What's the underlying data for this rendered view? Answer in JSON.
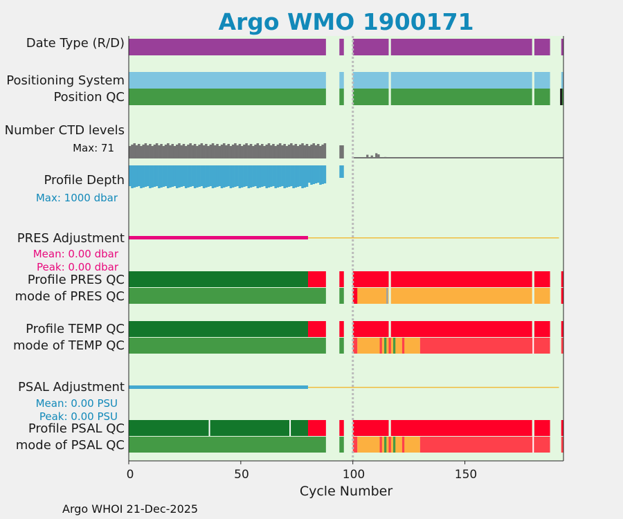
{
  "title": "Argo WMO 1900171",
  "footer": "Argo WHOI 21-Dec-2025",
  "chart_data": {
    "type": "bar",
    "title": "Argo WMO 1900171",
    "xlabel": "Cycle Number",
    "xlim": [
      0,
      194
    ],
    "xticks": [
      0,
      50,
      100,
      150
    ],
    "reference_cycle": 100,
    "rows": {
      "date_type": "Date Type (R/D)",
      "positioning": "Positioning System",
      "position_qc": "Position QC",
      "ctd_levels": "Number CTD levels",
      "ctd_max": "Max: 71",
      "profile_depth": "Profile Depth",
      "depth_max": "Max: 1000 dbar",
      "pres_adj": "PRES Adjustment",
      "pres_mean": "Mean: 0.00 dbar",
      "pres_peak": "Peak: 0.00 dbar",
      "pres_qc": "Profile PRES QC",
      "pres_mode": "mode of PRES QC",
      "temp_qc": "Profile TEMP QC",
      "temp_mode": "mode of TEMP QC",
      "psal_adj": "PSAL Adjustment",
      "psal_mean": "Mean: 0.00 PSU",
      "psal_peak": "Peak: 0.00 PSU",
      "psal_qc": "Profile PSAL QC",
      "psal_mode": "mode of PSAL QC"
    },
    "cycle_gaps": [
      [
        88,
        94
      ],
      [
        96,
        100
      ],
      [
        116,
        117
      ],
      [
        180,
        181
      ],
      [
        188,
        193
      ]
    ],
    "ctd_levels": {
      "max": 71,
      "peak_cycles": [
        [
          106,
          20
        ],
        [
          108,
          16
        ],
        [
          110,
          28
        ],
        [
          111,
          22
        ],
        [
          114,
          8
        ]
      ]
    },
    "profile_depth_max_dbar": 1000,
    "pres_adjustment_dbar": {
      "mean": 0.0,
      "peak": 0.0,
      "adjusted_until_cycle": 80
    },
    "psal_adjustment_psu": {
      "mean": 0.0,
      "peak": 0.0,
      "adjusted_until_cycle": 80
    },
    "qc_flag_colors": {
      "A": "#13772b",
      "good": "#449a45",
      "F": "#ff0028",
      "mixed": "#fcb040",
      "bad": "#fe404b"
    }
  },
  "colors": {
    "plot_bg": "#e4f7e0",
    "date_type": "#993f99",
    "positioning": "#7fc5e0",
    "ctd": "#737373",
    "depth": "#44a9d0",
    "pres_adj": "#e8097c",
    "psal_adj": "#44a9d0",
    "zero_line": "#f0bd3f",
    "title": "#1289b9"
  }
}
